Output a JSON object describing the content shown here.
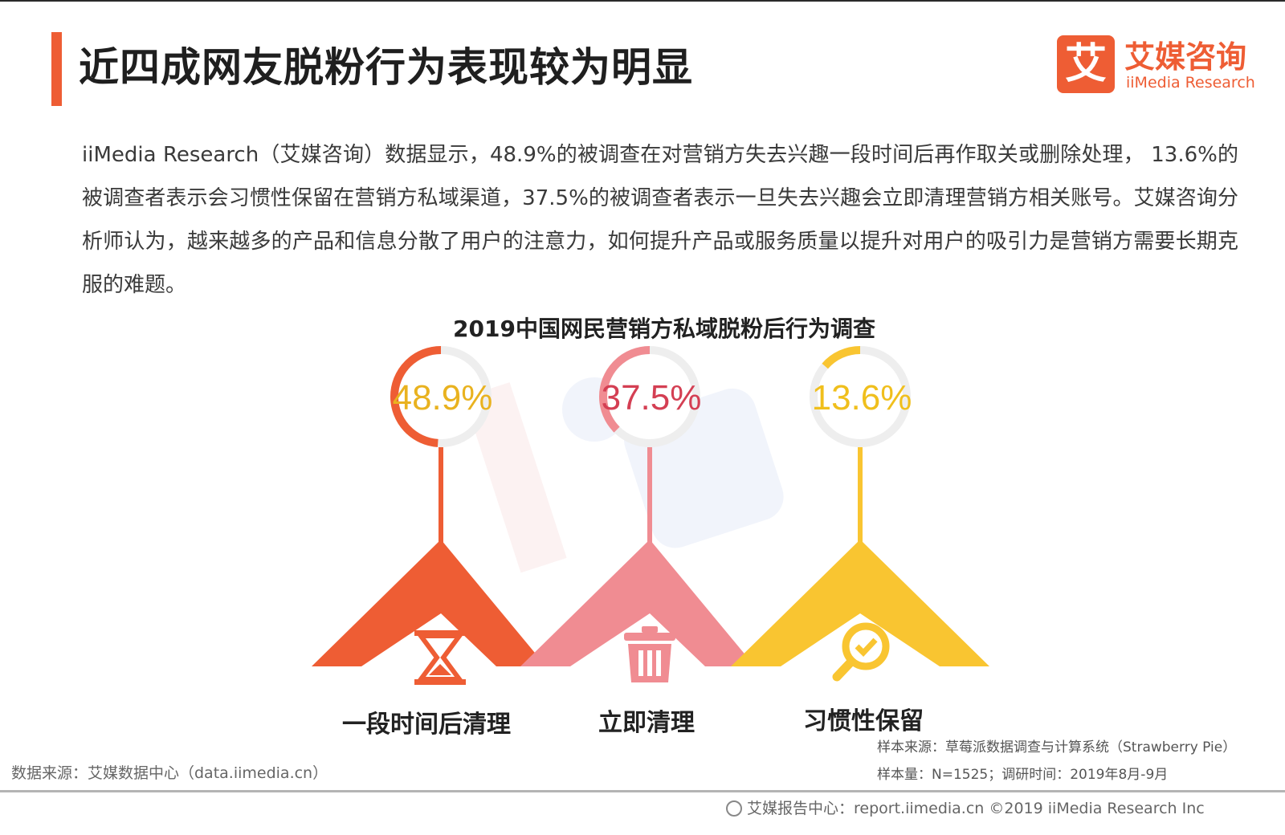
{
  "page": {
    "title": "近四成网友脱粉行为表现较为明显",
    "logo_mark": "艾",
    "logo_cn": "艾媒咨询",
    "logo_en": "iiMedia Research",
    "description": "iiMedia Research（艾媒咨询）数据显示，48.9%的被调查在对营销方失去兴趣一段时间后再作取关或删除处理， 13.6%的被调查者表示会习惯性保留在营销方私域渠道，37.5%的被调查者表示一旦失去兴趣会立即清理营销方相关账号。艾媒咨询分析师认为，越来越多的产品和信息分散了用户的注意力，如何提升产品或服务质量以提升对用户的吸引力是营销方需要长期克服的难题。",
    "sample_source": "样本来源：草莓派数据调查与计算系统（Strawberry Pie）",
    "sample_size": "样本量：N=1525；调研时间：2019年8月-9月",
    "data_source": "数据来源：艾媒数据中心（data.iimedia.cn）",
    "footer": "艾媒报告中心：report.iimedia.cn ©2019  iiMedia Research  Inc"
  },
  "chart_data": {
    "type": "pie",
    "title": "2019中国网民营销方私域脱粉后行为调查",
    "categories": [
      "一段时间后清理",
      "立即清理",
      "习惯性保留"
    ],
    "values": [
      48.9,
      37.5,
      13.6
    ],
    "value_labels": [
      "48.9%",
      "37.5%",
      "13.6%"
    ],
    "colors": [
      "#ee5d34",
      "#f08c92",
      "#f9c531"
    ],
    "label_colors": [
      "#e9b21f",
      "#d43f53",
      "#f0bf1c"
    ],
    "icons": [
      "hourglass-icon",
      "trash-icon",
      "search-check-icon"
    ],
    "ring_track_color": "#eeeeee"
  }
}
